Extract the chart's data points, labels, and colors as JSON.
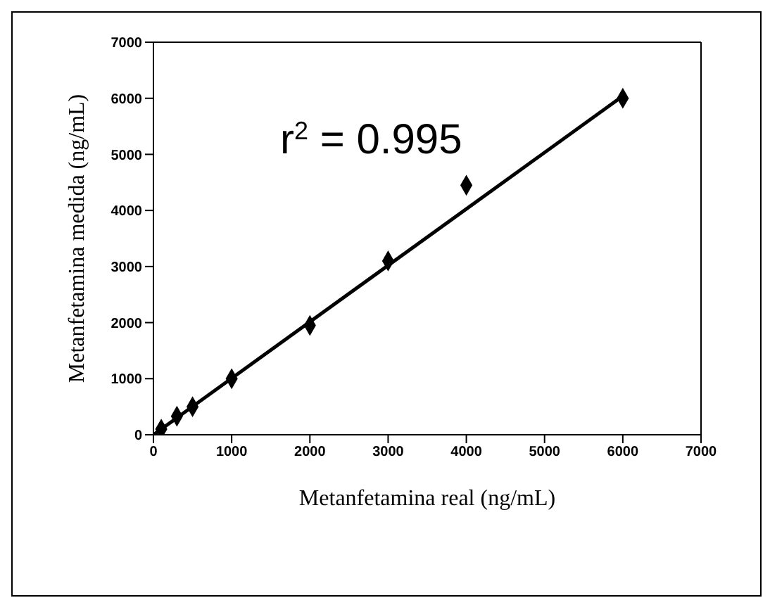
{
  "chart_data": {
    "type": "scatter",
    "xlabel": "Metanfetamina real (ng/mL)",
    "ylabel": "Metanfetamina medida (ng/mL)",
    "annotations": [
      "r$^{2}$ = 0.995"
    ],
    "xlim": [
      0,
      7000
    ],
    "xticks": [
      0,
      1000,
      2000,
      3000,
      4000,
      5000,
      6000,
      7000
    ],
    "ylim": [
      0,
      7000
    ],
    "yticks": [
      0,
      1000,
      2000,
      3000,
      4000,
      5000,
      6000,
      7000
    ],
    "grid": false,
    "series": [
      {
        "marker": "diamond",
        "color": "#000000",
        "x": [
          100,
          300,
          500,
          1000,
          2000,
          3000,
          4000,
          6000
        ],
        "values": [
          100,
          330,
          500,
          1000,
          1950,
          3100,
          4450,
          6000
        ]
      },
      {
        "type": "line",
        "marker": "none",
        "color": "#000000",
        "x": [
          0,
          6000
        ],
        "values": [
          0,
          6040
        ]
      }
    ]
  }
}
